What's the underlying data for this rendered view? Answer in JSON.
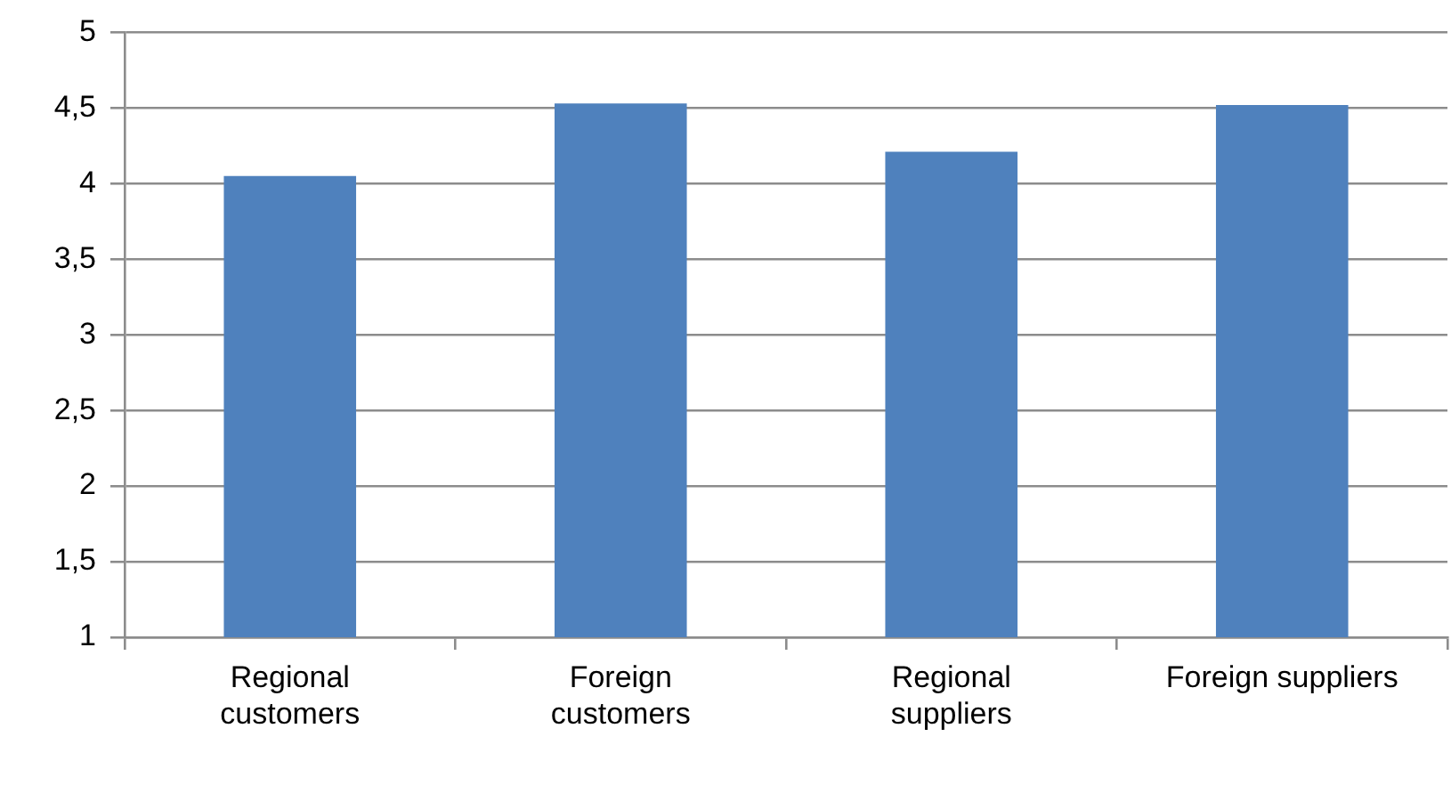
{
  "chart_data": {
    "type": "bar",
    "categories": [
      "Regional customers",
      "Foreign customers",
      "Regional suppliers",
      "Foreign suppliers"
    ],
    "values": [
      4.05,
      4.53,
      4.21,
      4.52
    ],
    "color": "#4f81bd",
    "ylim": [
      1,
      5
    ],
    "yticks": [
      1,
      {
        "value": 1.5,
        "label": "1,5"
      },
      2,
      {
        "value": 2.5,
        "label": "2,5"
      },
      3,
      {
        "value": 3.5,
        "label": "3,5"
      },
      4,
      {
        "value": 4.5,
        "label": "4,5"
      },
      5
    ],
    "grid": "y",
    "legend": false
  }
}
